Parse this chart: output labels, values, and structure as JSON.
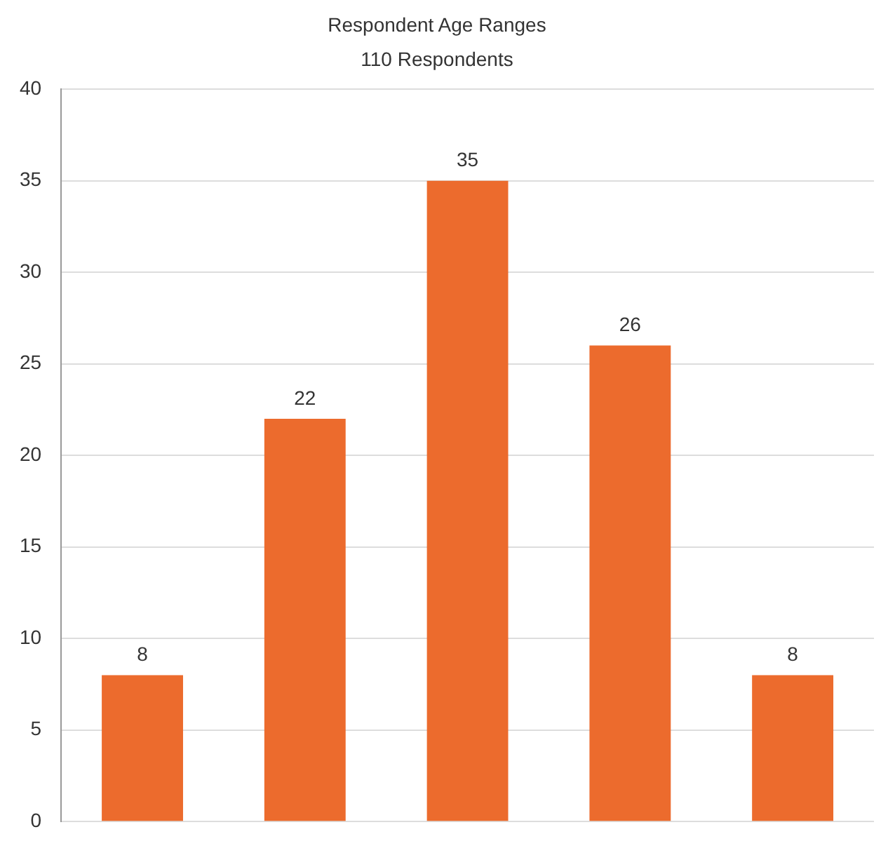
{
  "chart_data": {
    "type": "bar",
    "title": "Respondent Age Ranges",
    "subtitle": "110 Respondents",
    "categories": [
      null,
      null,
      null,
      null,
      null
    ],
    "values": [
      8,
      22,
      35,
      26,
      8
    ],
    "color": "#ec6b2d",
    "ylim": [
      0,
      40
    ],
    "yticks": [
      0,
      5,
      10,
      15,
      20,
      25,
      30,
      35,
      40
    ],
    "grid": "y",
    "data_labels": true
  }
}
